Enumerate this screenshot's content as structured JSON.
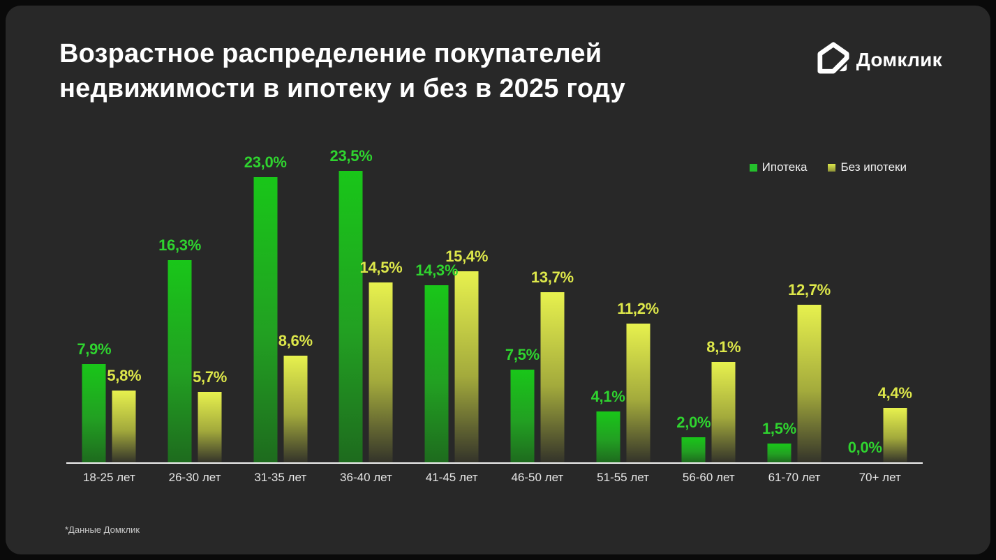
{
  "page": {
    "background_color": "#0a0a0a",
    "panel_color": "#282828"
  },
  "header": {
    "title_line1": "Возрастное распределение покупателей",
    "title_line2": "недвижимости в ипотеку и без в 2025 году"
  },
  "logo": {
    "text": "Домклик",
    "icon": "domclick-house-icon",
    "color": "#ffffff"
  },
  "legend": [
    {
      "label": "Ипотека",
      "color": "#24c02c"
    },
    {
      "label": "Без ипотеки",
      "color": "#cdd945"
    }
  ],
  "footnote": "*Данные Домклик",
  "chart_data": {
    "type": "bar",
    "title": "Возрастное распределение покупателей недвижимости в ипотеку и без в 2025 году",
    "categories": [
      "18-25 лет",
      "26-30 лет",
      "31-35 лет",
      "36-40 лет",
      "41-45 лет",
      "46-50 лет",
      "51-55 лет",
      "56-60 лет",
      "61-70 лет",
      "70+ лет"
    ],
    "series": [
      {
        "name": "Ипотека",
        "color_top": "#19c619",
        "color_bottom": "#1e6b1e",
        "label_color": "#2fd42f",
        "values": [
          7.9,
          16.3,
          23.0,
          23.5,
          14.3,
          7.5,
          4.1,
          2.0,
          1.5,
          0.0
        ],
        "labels": [
          "7,9%",
          "16,3%",
          "23,0%",
          "23,5%",
          "14,3%",
          "7,5%",
          "4,1%",
          "2,0%",
          "1,5%",
          "0,0%"
        ]
      },
      {
        "name": "Без ипотеки",
        "color_top": "#e7f14e",
        "color_bottom": "#34342a",
        "label_color": "#dde74a",
        "values": [
          5.8,
          5.7,
          8.6,
          14.5,
          15.4,
          13.7,
          11.2,
          8.1,
          12.7,
          4.4
        ],
        "labels": [
          "5,8%",
          "5,7%",
          "8,6%",
          "14,5%",
          "15,4%",
          "13,7%",
          "11,2%",
          "8,1%",
          "12,7%",
          "4,4%"
        ]
      }
    ],
    "xlabel": "",
    "ylabel": "",
    "ylim": [
      0,
      25
    ],
    "grid": false,
    "value_labels_shown": true,
    "legend_position": "top-right"
  }
}
